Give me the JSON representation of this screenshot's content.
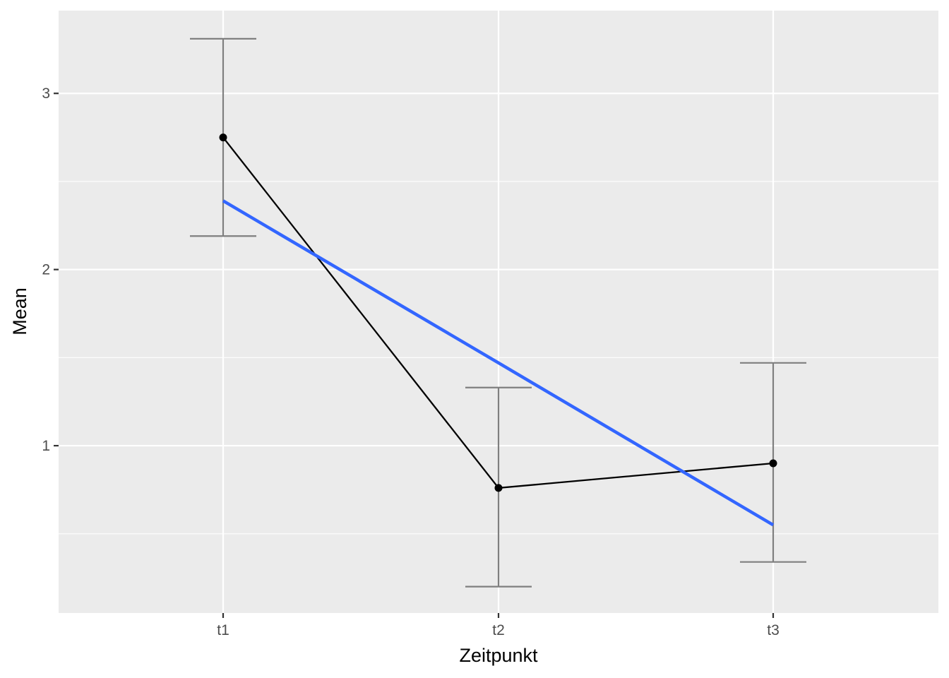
{
  "chart_data": {
    "type": "line",
    "title": "",
    "xlabel": "Zeitpunkt",
    "ylabel": "Mean",
    "categories": [
      "t1",
      "t2",
      "t3"
    ],
    "ylim": [
      0.05,
      3.47
    ],
    "y_ticks": [
      1,
      2,
      3
    ],
    "y_tick_labels": [
      "1",
      "2",
      "3"
    ],
    "grid": true,
    "legend": "none",
    "series": [
      {
        "kind": "mean",
        "values": [
          2.75,
          0.76,
          0.9
        ],
        "error_low": [
          2.19,
          0.2,
          0.34
        ],
        "error_high": [
          3.31,
          1.33,
          1.47
        ],
        "color": "#000000",
        "errorbar_color": "#7f7f7f"
      },
      {
        "kind": "linear-fit",
        "values": [
          2.39,
          1.47,
          0.55
        ],
        "color": "#3366ff"
      }
    ],
    "background": "#ebebeb",
    "grid_color": "#ffffff"
  }
}
